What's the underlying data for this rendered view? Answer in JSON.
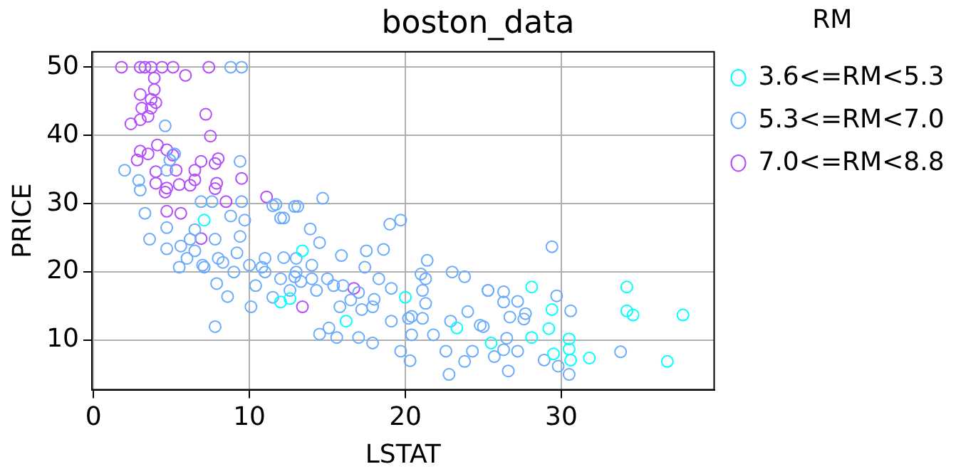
{
  "chart_data": {
    "type": "scatter",
    "title": "boston_data",
    "xlabel": "LSTAT",
    "ylabel": "PRICE",
    "legend_title": "RM",
    "xlim": [
      -0.1,
      39.8
    ],
    "ylim": [
      2.75,
      52.25
    ],
    "xticks": [
      0,
      10,
      20,
      30
    ],
    "yticks": [
      10,
      20,
      30,
      40,
      50
    ],
    "grid": true,
    "legend": "right",
    "marker": "circle",
    "series": [
      {
        "name": "3.6<=RM<5.3",
        "color": "#00ffff",
        "x": [
          28.1,
          34.2,
          29.4,
          34.2,
          34.6,
          37.8,
          29.2,
          28.1,
          25.5,
          30.5,
          30.5,
          29.5,
          30.6,
          31.8,
          36.8,
          13.4,
          12.6,
          16.2,
          20.0,
          23.3,
          7.1,
          12.0
        ],
        "values": [
          17.8,
          17.8,
          14.5,
          14.3,
          13.7,
          13.7,
          11.7,
          10.4,
          9.6,
          10.2,
          8.7,
          8.0,
          7.1,
          7.4,
          6.9,
          23.1,
          16.1,
          12.8,
          16.3,
          11.8,
          27.6,
          15.6
        ]
      },
      {
        "name": "5.3<=RM<7.0",
        "color": "#6aabff",
        "x": [
          8.8,
          9.5,
          4.6,
          2.0,
          9.4,
          2.9,
          3.0,
          4.7,
          4.9,
          5.2,
          6.9,
          7.6,
          9.5,
          11.7,
          12.9,
          3.3,
          8.8,
          3.6,
          4.7,
          5.6,
          6.5,
          6.5,
          7.1,
          5.5,
          7.8,
          7.9,
          8.6,
          7.8,
          10.1,
          9.2,
          9.7,
          11.5,
          12.0,
          9.4,
          10.8,
          11.5,
          10.4,
          4.7,
          6.2,
          8.3,
          12.2,
          12.9,
          12.6,
          14.7,
          13.1,
          12.2,
          13.9,
          14.5,
          15.9,
          17.5,
          18.6,
          19.0,
          19.7,
          21.4,
          23.0,
          23.8,
          21.0,
          21.3,
          25.3,
          21.1,
          21.3,
          20.4,
          21.1,
          22.9,
          24.0,
          24.8,
          21.8,
          20.4,
          19.7,
          20.3,
          23.8,
          22.8,
          24.3,
          22.6,
          19.1,
          17.9,
          17.0,
          15.6,
          14.5,
          15.1,
          17.2,
          17.9,
          16.5,
          15.8,
          14.3,
          13.3,
          15.4,
          18.3,
          17.4,
          19.1,
          20.2,
          29.4,
          25.3,
          26.3,
          26.3,
          27.2,
          29.7,
          30.6,
          26.7,
          27.7,
          27.6,
          26.5,
          26.3,
          27.2,
          25.7,
          28.9,
          29.8,
          30.5,
          26.6,
          33.8,
          25.0,
          6,
          7,
          8,
          10,
          11,
          12,
          13,
          14,
          15,
          16,
          17,
          18,
          14,
          11,
          9,
          13
        ],
        "values": [
          50,
          50,
          41.4,
          34.9,
          36.2,
          33.4,
          32.0,
          34.9,
          36.4,
          37.3,
          30.3,
          30.3,
          30.3,
          29.9,
          29.6,
          28.6,
          28.2,
          24.8,
          26.5,
          23.8,
          26.2,
          23.1,
          20.7,
          20.7,
          24.8,
          18.3,
          16.4,
          12.0,
          14.9,
          22.8,
          27.6,
          29.7,
          27.9,
          25.2,
          20.7,
          16.3,
          18.0,
          23.4,
          24.8,
          21.4,
          22.1,
          19.3,
          17.3,
          30.8,
          29.6,
          27.9,
          26.3,
          24.3,
          22.4,
          23.1,
          23.3,
          27.0,
          27.6,
          21.7,
          20.0,
          19.3,
          19.7,
          19.0,
          17.3,
          17.3,
          15.4,
          13.5,
          13.2,
          12.8,
          14.2,
          12.2,
          10.8,
          10.8,
          8.4,
          7.0,
          6.9,
          5.0,
          8.4,
          8.4,
          12.8,
          9.6,
          10.4,
          10.4,
          10.9,
          11.8,
          14.5,
          14.9,
          15.9,
          14.9,
          17.3,
          18.6,
          18.0,
          19.0,
          20.7,
          17.6,
          13.2,
          23.7,
          17.3,
          17.1,
          15.6,
          15.7,
          16.5,
          14.3,
          13.4,
          13.9,
          13.1,
          10.3,
          8.6,
          8.4,
          7.6,
          7.1,
          6.2,
          5.0,
          5.5,
          8.3,
          12.0,
          22,
          21,
          22,
          21,
          20,
          19,
          20,
          19,
          19,
          18,
          17,
          16,
          21,
          22,
          20,
          22
        ]
      },
      {
        "name": "7.0<=RM<8.8",
        "color": "#b24cff",
        "x": [
          1.8,
          3.0,
          3.3,
          3.7,
          4.4,
          5.1,
          7.4,
          3.9,
          5.9,
          3.9,
          3.0,
          3.7,
          4.0,
          3.1,
          3.7,
          3.5,
          3.0,
          2.4,
          7.2,
          7.5,
          4.1,
          3.0,
          3.5,
          2.8,
          4.7,
          5.1,
          6.9,
          8.0,
          7.8,
          6.5,
          5.3,
          4.0,
          9.5,
          7.9,
          6.5,
          6.2,
          5.5,
          4.7,
          4.0,
          7.8,
          11.1,
          8.5,
          4.6,
          4.7,
          5.6,
          6.9,
          16.7,
          13.4
        ],
        "values": [
          50,
          50,
          50,
          50,
          50,
          50,
          50,
          48.4,
          48.8,
          46.7,
          46.0,
          45.3,
          44.8,
          44.0,
          44.0,
          42.8,
          42.3,
          41.7,
          43.1,
          39.9,
          38.6,
          37.7,
          37.3,
          36.4,
          37.9,
          37.1,
          36.2,
          36.6,
          35.9,
          34.9,
          34.9,
          34.7,
          33.7,
          33.0,
          33.5,
          32.7,
          32.8,
          32.3,
          33.0,
          32.2,
          31.0,
          30.3,
          31.7,
          28.9,
          28.6,
          24.9,
          17.6,
          14.9
        ]
      }
    ]
  }
}
